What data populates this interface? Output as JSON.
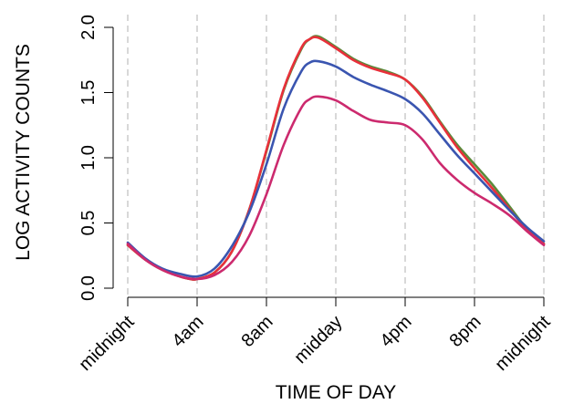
{
  "chart_data": {
    "type": "line",
    "xlabel": "TIME OF DAY",
    "ylabel": "LOG ACTIVITY COUNTS",
    "xlim": [
      0,
      24
    ],
    "ylim": [
      0,
      2
    ],
    "x_ticks": [
      0,
      4,
      8,
      12,
      16,
      20,
      24
    ],
    "x_tick_labels": [
      "midnight",
      "4am",
      "8am",
      "midday",
      "4pm",
      "8pm",
      "midnight"
    ],
    "y_ticks": [
      0,
      0.5,
      1,
      1.5,
      2
    ],
    "y_tick_labels": [
      "0.0",
      "0.5",
      "1.0",
      "1.5",
      "2.0"
    ],
    "grid": "vertical dashed at x ticks",
    "series": [
      {
        "color": "#5a8a3a",
        "x": [
          0,
          1,
          2,
          3,
          3.6,
          4,
          5,
          6,
          7,
          8,
          9,
          10,
          10.5,
          11,
          12,
          13,
          14,
          15,
          16,
          17,
          18,
          19,
          20,
          21,
          22,
          23,
          24
        ],
        "y": [
          0.33,
          0.22,
          0.14,
          0.09,
          0.07,
          0.07,
          0.12,
          0.28,
          0.6,
          1.05,
          1.52,
          1.83,
          1.91,
          1.93,
          1.85,
          1.76,
          1.7,
          1.66,
          1.6,
          1.47,
          1.28,
          1.1,
          0.95,
          0.8,
          0.63,
          0.46,
          0.34
        ]
      },
      {
        "color": "#e8303a",
        "x": [
          0,
          1,
          2,
          3,
          3.6,
          4,
          5,
          6,
          7,
          8,
          9,
          10,
          10.5,
          11,
          12,
          13,
          14,
          15,
          16,
          17,
          18,
          19,
          20,
          21,
          22,
          23,
          24
        ],
        "y": [
          0.33,
          0.22,
          0.14,
          0.09,
          0.07,
          0.07,
          0.12,
          0.28,
          0.6,
          1.06,
          1.53,
          1.84,
          1.91,
          1.92,
          1.84,
          1.75,
          1.69,
          1.65,
          1.6,
          1.46,
          1.27,
          1.08,
          0.92,
          0.77,
          0.61,
          0.45,
          0.34
        ]
      },
      {
        "color": "#3a55b0",
        "x": [
          0,
          1,
          2,
          3,
          4,
          5,
          6,
          7,
          8,
          9,
          10,
          10.5,
          11,
          12,
          13,
          14,
          15,
          16,
          17,
          18,
          19,
          20,
          21,
          22,
          23,
          24
        ],
        "y": [
          0.35,
          0.23,
          0.15,
          0.11,
          0.09,
          0.15,
          0.32,
          0.58,
          0.95,
          1.38,
          1.66,
          1.73,
          1.74,
          1.7,
          1.62,
          1.56,
          1.51,
          1.45,
          1.34,
          1.18,
          1.02,
          0.88,
          0.74,
          0.6,
          0.47,
          0.36
        ]
      },
      {
        "color": "#cc2a6e",
        "x": [
          0,
          1,
          2,
          3,
          4,
          5,
          6,
          7,
          8,
          9,
          10,
          10.5,
          11,
          12,
          13,
          14,
          15,
          16,
          17,
          18,
          19,
          20,
          21,
          22,
          23,
          24
        ],
        "y": [
          0.34,
          0.22,
          0.14,
          0.09,
          0.07,
          0.1,
          0.2,
          0.4,
          0.72,
          1.1,
          1.38,
          1.45,
          1.47,
          1.44,
          1.36,
          1.29,
          1.27,
          1.25,
          1.14,
          0.96,
          0.83,
          0.73,
          0.65,
          0.56,
          0.44,
          0.33
        ]
      }
    ]
  }
}
